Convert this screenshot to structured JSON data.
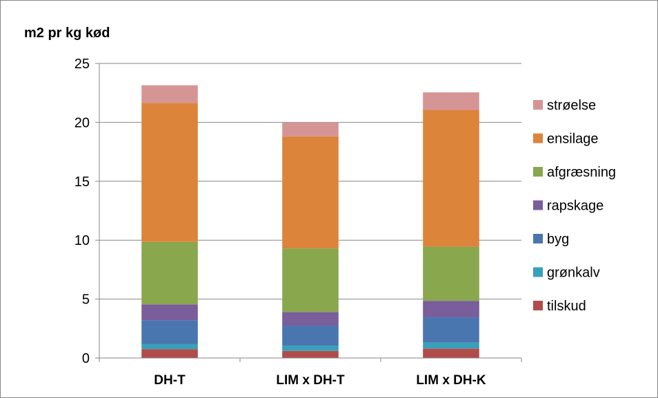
{
  "chart_data": {
    "type": "bar",
    "stacked": true,
    "ylabel": "m2 pr kg kød",
    "xlabel": "",
    "ylim": [
      0,
      25
    ],
    "yticks": [
      0,
      5,
      10,
      15,
      20,
      25
    ],
    "grid": "horizontal",
    "legend_position": "right",
    "categories": [
      "DH-T",
      "LIM x DH-T",
      "LIM x DH-K"
    ],
    "series": [
      {
        "name": "tilskud",
        "color": "#b04d4b",
        "values": [
          0.75,
          0.6,
          0.8
        ]
      },
      {
        "name": "grønkalv",
        "color": "#38a0b9",
        "values": [
          0.45,
          0.45,
          0.5
        ]
      },
      {
        "name": "byg",
        "color": "#4a76b0",
        "values": [
          2.0,
          1.7,
          2.15
        ]
      },
      {
        "name": "rapskage",
        "color": "#7a5d9b",
        "values": [
          1.35,
          1.15,
          1.4
        ]
      },
      {
        "name": "afgræsning",
        "color": "#89a74d",
        "values": [
          5.3,
          5.4,
          4.6
        ]
      },
      {
        "name": "ensilage",
        "color": "#dd843b",
        "values": [
          11.8,
          9.5,
          11.6
        ]
      },
      {
        "name": "strøelse",
        "color": "#d69595",
        "values": [
          1.5,
          1.2,
          1.5
        ]
      }
    ]
  }
}
